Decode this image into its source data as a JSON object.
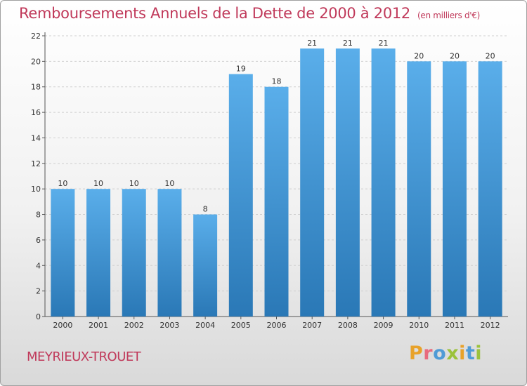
{
  "header": {
    "title": "Remboursements Annuels de la Dette de 2000 à 2012",
    "subtitle": "(en milliers d'€)"
  },
  "footer": {
    "commune": "MEYRIEUX-TROUET",
    "logo_letters": [
      "P",
      "r",
      "o",
      "x",
      "i",
      "t",
      "i"
    ],
    "logo_colors": [
      "#e8a22a",
      "#e86b7e",
      "#4f9bd6",
      "#9bc23b",
      "#e8a22a",
      "#4f9bd6",
      "#9bc23b"
    ]
  },
  "colors": {
    "bar_top": "#5aaeea",
    "bar_bottom": "#2a78b6",
    "grid": "#cfcfcf",
    "axis": "#555555"
  },
  "chart_data": {
    "type": "bar",
    "title": "Remboursements Annuels de la Dette de 2000 à 2012",
    "subtitle": "(en milliers d'€)",
    "categories": [
      "2000",
      "2001",
      "2002",
      "2003",
      "2004",
      "2005",
      "2006",
      "2007",
      "2008",
      "2009",
      "2010",
      "2011",
      "2012"
    ],
    "values": [
      10,
      10,
      10,
      10,
      8,
      19,
      18,
      21,
      21,
      21,
      20,
      20,
      20
    ],
    "ylim": [
      0,
      22
    ],
    "yticks": [
      0,
      2,
      4,
      6,
      8,
      10,
      12,
      14,
      16,
      18,
      20,
      22
    ],
    "grid": true,
    "legend": "none"
  }
}
